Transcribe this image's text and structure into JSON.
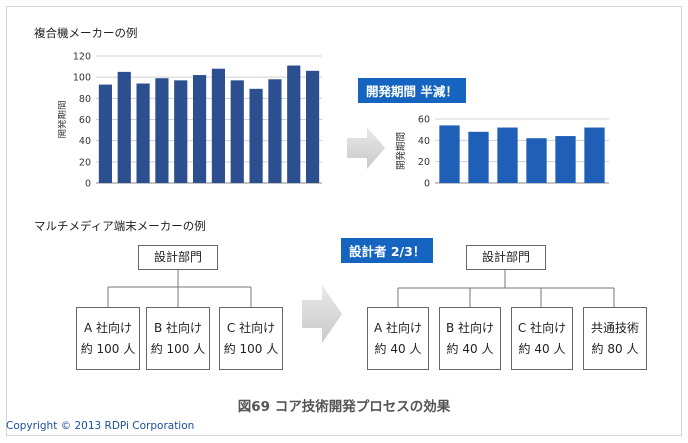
{
  "section_top": {
    "title": "複合機メーカーの例"
  },
  "section_bottom": {
    "title": "マルチメディア端末メーカーの例"
  },
  "badges": {
    "top": "開発期間 半減！",
    "bottom": "設計者 2/3！"
  },
  "org_before": {
    "root": "設計部門",
    "children": [
      {
        "name": "A 社向け",
        "people": "約 100 人"
      },
      {
        "name": "B 社向け",
        "people": "約 100 人"
      },
      {
        "name": "C 社向け",
        "people": "約 100 人"
      }
    ]
  },
  "org_after": {
    "root": "設計部門",
    "children": [
      {
        "name": "A 社向け",
        "people": "約 40 人"
      },
      {
        "name": "B 社向け",
        "people": "約 40 人"
      },
      {
        "name": "C 社向け",
        "people": "約 40 人"
      },
      {
        "name": "共通技術",
        "people": "約 80 人"
      }
    ]
  },
  "caption": "図69 コア技術開発プロセスの効果",
  "copyright": "Copyright © 2013  RDPi Corporation",
  "colors": {
    "bar_left": "#2b4f8f",
    "bar_right": "#1f5fb8",
    "badge": "#1565c0",
    "arrow": "#d8d8d8"
  },
  "chart_data": [
    {
      "type": "bar",
      "title": "",
      "xlabel": "",
      "ylabel": "開発期間",
      "ylim": [
        0,
        120
      ],
      "yticks": [
        0,
        20,
        40,
        60,
        80,
        100,
        120
      ],
      "values": [
        93,
        105,
        94,
        99,
        97,
        102,
        108,
        97,
        89,
        98,
        111,
        106
      ],
      "grid": true
    },
    {
      "type": "bar",
      "title": "",
      "xlabel": "",
      "ylabel": "開発期間",
      "ylim": [
        0,
        60
      ],
      "yticks": [
        0,
        20,
        40,
        60
      ],
      "values": [
        54,
        48,
        52,
        42,
        44,
        52
      ],
      "grid": true
    }
  ]
}
